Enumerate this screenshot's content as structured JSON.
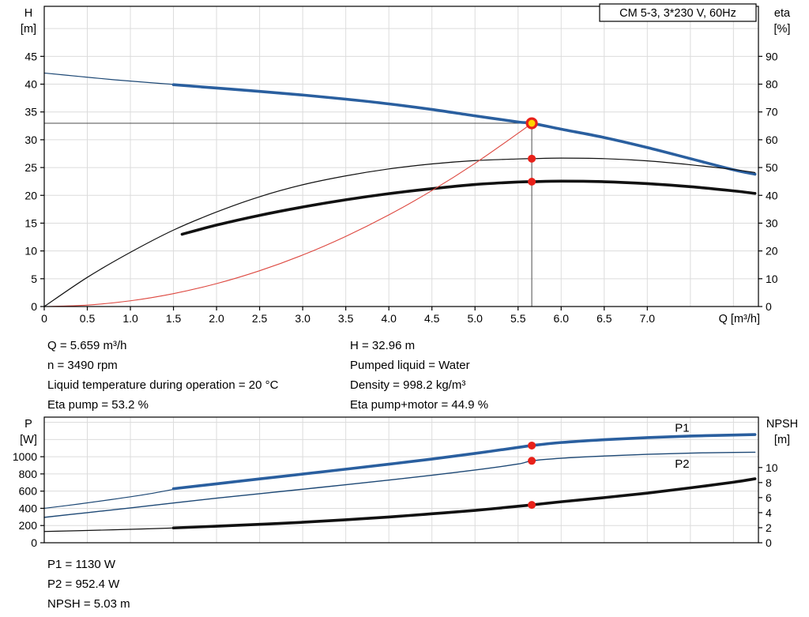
{
  "title_box": "CM 5-3, 3*230 V, 60Hz",
  "info_top_left": [
    "Q = 5.659 m³/h",
    "n = 3490 rpm",
    "Liquid temperature during operation = 20 °C",
    "Eta pump = 53.2 %"
  ],
  "info_top_right": [
    "H = 32.96 m",
    "Pumped liquid = Water",
    "Density = 998.2 kg/m³",
    "Eta pump+motor = 44.9 %"
  ],
  "info_bottom": [
    "P1 = 1130 W",
    "P2 = 952.4 W",
    "NPSH = 5.03 m"
  ],
  "colors": {
    "blue": "#2a5f9f",
    "blue_thin": "#1d4875",
    "black": "#111111",
    "red_curve": "#dd4840",
    "red_dot": "#e8211a",
    "yellow": "#ffd400",
    "grid": "#dcdcdc",
    "ref_line": "#4d4d4d",
    "frame": "#000000"
  },
  "chart_data": [
    {
      "name": "hq-eta-chart",
      "type": "line",
      "title": "CM 5-3, 3*230 V, 60Hz",
      "x_axis": {
        "label": "Q [m³/h]",
        "min": 0,
        "max": 8.29,
        "ticks": [
          0,
          0.5,
          1,
          1.5,
          2,
          2.5,
          3,
          3.5,
          4,
          4.5,
          5,
          5.5,
          6,
          6.5,
          7
        ],
        "tick_labels": [
          "0",
          "0.5",
          "1.0",
          "1.5",
          "2.0",
          "2.5",
          "3.0",
          "3.5",
          "4.0",
          "4.5",
          "5.0",
          "5.5",
          "6.0",
          "6.5",
          "7.0"
        ],
        "grid_values": [
          0.5,
          1,
          1.5,
          2,
          2.5,
          3,
          3.5,
          4,
          4.5,
          5,
          5.5,
          6,
          6.5,
          7,
          7.5,
          8
        ],
        "show_labels": true
      },
      "y_left": {
        "label_lines": [
          "H",
          "[m]"
        ],
        "min": 0,
        "max": 54,
        "ticks": [
          0,
          5,
          10,
          15,
          20,
          25,
          30,
          35,
          40,
          45
        ],
        "tick_labels": [
          "0",
          "5",
          "10",
          "15",
          "20",
          "25",
          "30",
          "35",
          "40",
          "45"
        ],
        "grid_values": [
          5,
          10,
          15,
          20,
          25,
          30,
          35,
          40,
          45,
          50
        ]
      },
      "y_right": {
        "label_lines": [
          "eta",
          "[%]"
        ],
        "min": 0,
        "max": 108,
        "ticks": [
          0,
          10,
          20,
          30,
          40,
          50,
          60,
          70,
          80,
          90
        ],
        "tick_labels": [
          "0",
          "10",
          "20",
          "30",
          "40",
          "50",
          "60",
          "70",
          "80",
          "90"
        ]
      },
      "series": [
        {
          "name": "h-q-curve-thin",
          "axis": "left",
          "color": "#1d4875",
          "width": 1.2,
          "x": [
            0,
            0.4,
            0.8,
            1.2,
            1.6
          ],
          "y": [
            42,
            41.4,
            40.8,
            40.3,
            39.85
          ]
        },
        {
          "name": "h-q-curve",
          "axis": "left",
          "color": "#2a5f9f",
          "width": 3.6,
          "x": [
            1.5,
            2,
            2.5,
            3,
            3.5,
            4,
            4.5,
            5,
            5.5,
            5.659,
            6,
            6.5,
            7,
            7.5,
            8,
            8.25
          ],
          "y": [
            39.9,
            39.3,
            38.7,
            38.05,
            37.3,
            36.45,
            35.45,
            34.3,
            33.2,
            32.96,
            31.9,
            30.4,
            28.6,
            26.6,
            24.6,
            23.8
          ]
        },
        {
          "name": "eta-pump-curve",
          "axis": "right",
          "color": "#111111",
          "width": 1.2,
          "x": [
            0,
            0.5,
            1,
            1.5,
            2,
            2.5,
            3,
            3.5,
            4,
            4.5,
            5,
            5.5,
            5.659,
            6,
            6.5,
            7,
            7.5,
            8,
            8.25
          ],
          "y": [
            0,
            10.5,
            19.5,
            27.5,
            34,
            39.5,
            43.8,
            47,
            49.5,
            51.3,
            52.5,
            53.1,
            53.2,
            53.4,
            53.2,
            52.4,
            51,
            49.3,
            48.2
          ]
        },
        {
          "name": "eta-pump-motor-curve",
          "axis": "right",
          "color": "#111111",
          "width": 3.6,
          "x": [
            1.6,
            2,
            2.5,
            3,
            3.5,
            4,
            4.5,
            5,
            5.5,
            5.659,
            6,
            6.5,
            7,
            7.5,
            8,
            8.25
          ],
          "y": [
            26,
            29.3,
            32.8,
            35.8,
            38.4,
            40.6,
            42.4,
            43.9,
            44.8,
            44.9,
            45.1,
            44.9,
            44.2,
            43.1,
            41.6,
            40.7
          ]
        },
        {
          "name": "system-curve",
          "axis": "left",
          "color": "#dd4840",
          "width": 1.1,
          "x": [
            0,
            0.5,
            1,
            1.5,
            2,
            2.5,
            3,
            3.5,
            4,
            4.5,
            5,
            5.5,
            5.659
          ],
          "y": [
            0,
            0.26,
            1.03,
            2.32,
            4.12,
            6.44,
            9.27,
            12.62,
            16.48,
            20.86,
            25.75,
            31.16,
            32.96
          ]
        }
      ],
      "ref_lines": [
        {
          "type": "h",
          "axis": "left",
          "value": 32.96,
          "from": 0,
          "to": 5.659,
          "color": "#4d4d4d"
        },
        {
          "type": "v",
          "axis": "left",
          "value": 5.659,
          "from": 0,
          "to": 32.96,
          "color": "#4d4d4d"
        }
      ],
      "markers": [
        {
          "name": "eta-pump-point",
          "x": 5.659,
          "y": 53.2,
          "axis": "right",
          "r": 5,
          "fill": "#e8211a"
        },
        {
          "name": "eta-pump-motor-point",
          "x": 5.659,
          "y": 44.9,
          "axis": "right",
          "r": 5,
          "fill": "#e8211a"
        },
        {
          "name": "duty-point-marker",
          "x": 5.659,
          "y": 32.96,
          "axis": "left",
          "r": 6,
          "fill": "#ffd400",
          "stroke": "#e8211a",
          "stroke_width": 3.2
        }
      ],
      "annotations": []
    },
    {
      "name": "power-npsh-chart",
      "type": "line",
      "x_axis": {
        "label": "",
        "min": 0,
        "max": 8.29,
        "ticks": [],
        "tick_labels": [],
        "grid_values": [
          0.5,
          1,
          1.5,
          2,
          2.5,
          3,
          3.5,
          4,
          4.5,
          5,
          5.5,
          6,
          6.5,
          7,
          7.5,
          8
        ],
        "show_labels": false
      },
      "y_left": {
        "label_lines": [
          "P",
          "[W]"
        ],
        "min": 0,
        "max": 1460,
        "ticks": [
          0,
          200,
          400,
          600,
          800,
          1000
        ],
        "tick_labels": [
          "0",
          "200",
          "400",
          "600",
          "800",
          "1000"
        ],
        "grid_values": [
          200,
          400,
          600,
          800,
          1000,
          1200,
          1400
        ]
      },
      "y_right": {
        "label_lines": [
          "NPSH",
          "[m]"
        ],
        "min": 0,
        "max": 16.7,
        "ticks": [
          0,
          2,
          4,
          6,
          8,
          10
        ],
        "tick_labels": [
          "0",
          "2",
          "4",
          "6",
          "8",
          "10"
        ]
      },
      "series": [
        {
          "name": "p1-curve-thin",
          "axis": "left",
          "color": "#1d4875",
          "width": 1.2,
          "x": [
            0,
            0.4,
            0.8,
            1.2,
            1.6
          ],
          "y": [
            400,
            450,
            505,
            565,
            640
          ]
        },
        {
          "name": "p1-curve",
          "axis": "left",
          "color": "#2a5f9f",
          "width": 3.6,
          "x": [
            1.5,
            2,
            2.5,
            3,
            3.5,
            4,
            4.5,
            5,
            5.5,
            5.659,
            6,
            6.5,
            7,
            7.5,
            8,
            8.25
          ],
          "y": [
            628,
            685,
            742,
            798,
            855,
            913,
            973,
            1038,
            1108,
            1130,
            1165,
            1198,
            1222,
            1240,
            1252,
            1257
          ]
        },
        {
          "name": "p2-curve",
          "axis": "left",
          "color": "#1d4875",
          "width": 1.4,
          "x": [
            0,
            0.5,
            1,
            1.5,
            2,
            2.5,
            3,
            3.5,
            4,
            4.5,
            5,
            5.5,
            5.659,
            6,
            6.5,
            7,
            7.5,
            8,
            8.25
          ],
          "y": [
            295,
            350,
            405,
            462,
            518,
            570,
            622,
            674,
            728,
            785,
            845,
            915,
            952.4,
            982,
            1008,
            1028,
            1042,
            1050,
            1052
          ]
        },
        {
          "name": "npsh-curve-thin",
          "axis": "right",
          "color": "#111111",
          "width": 1.2,
          "x": [
            0,
            0.4,
            0.8,
            1.2,
            1.6
          ],
          "y": [
            1.5,
            1.6,
            1.72,
            1.85,
            2.0
          ]
        },
        {
          "name": "npsh-curve",
          "axis": "right",
          "color": "#111111",
          "width": 3.6,
          "x": [
            1.5,
            2,
            2.5,
            3,
            3.5,
            4,
            4.5,
            5,
            5.5,
            5.659,
            6,
            6.5,
            7,
            7.5,
            8,
            8.25
          ],
          "y": [
            1.97,
            2.2,
            2.45,
            2.72,
            3.05,
            3.42,
            3.85,
            4.3,
            4.85,
            5.03,
            5.45,
            6.0,
            6.6,
            7.3,
            8.05,
            8.5
          ]
        }
      ],
      "ref_lines": [],
      "markers": [
        {
          "name": "p1-point",
          "x": 5.659,
          "y": 1130,
          "axis": "left",
          "r": 5,
          "fill": "#e8211a"
        },
        {
          "name": "p2-point",
          "x": 5.659,
          "y": 952.4,
          "axis": "left",
          "r": 5,
          "fill": "#e8211a"
        },
        {
          "name": "npsh-point",
          "x": 5.659,
          "y": 5.03,
          "axis": "right",
          "r": 5,
          "fill": "#e8211a"
        }
      ],
      "annotations": [
        {
          "text": "P1",
          "x": 7.32,
          "y": 1290,
          "axis": "left",
          "color": "#2a5f9f"
        },
        {
          "text": "P2",
          "x": 7.32,
          "y": 872,
          "axis": "left",
          "color": "#2a5f9f"
        }
      ]
    }
  ]
}
